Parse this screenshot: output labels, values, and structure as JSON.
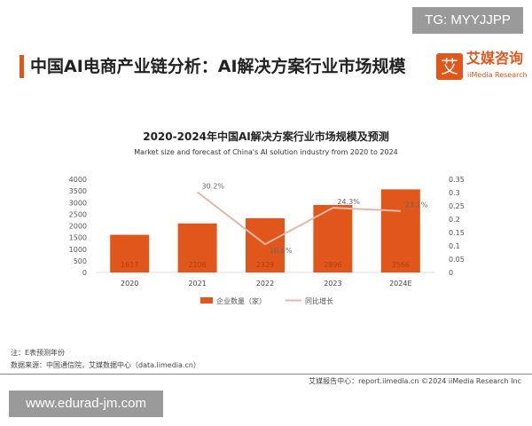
{
  "watermark_top": "TG: MYYJJPP",
  "header": {
    "title": "中国AI电商产业链分析：AI解决方案行业市场规模",
    "logo_glyph": "艾",
    "logo_cn": "艾媒咨询",
    "logo_en": "iiMedia Research",
    "accent": "#e0561b"
  },
  "chart_data": {
    "type": "bar+line",
    "title": "2020-2024年中国AI解决方案行业市场规模及预测",
    "subtitle": "Market size and forecast of China's AI solution industry from 2020 to 2024",
    "categories": [
      "2020",
      "2021",
      "2022",
      "2023",
      "2024E"
    ],
    "series": [
      {
        "name": "企业数量（家）",
        "type": "bar",
        "axis": "left",
        "values": [
          1617,
          2106,
          2329,
          2896,
          3566
        ],
        "color": "#e0561b"
      },
      {
        "name": "同比增长",
        "type": "line",
        "axis": "right",
        "values": [
          null,
          0.302,
          0.106,
          0.243,
          0.231
        ],
        "labels": [
          "",
          "30.2%",
          "10.6%",
          "24.3%",
          "23.1%"
        ],
        "color": "#e6b8a8"
      }
    ],
    "y_left": {
      "range": [
        0,
        4000
      ],
      "ticks": [
        "0",
        "500",
        "1000",
        "1500",
        "2000",
        "2500",
        "3000",
        "3500",
        "4000"
      ]
    },
    "y_right": {
      "range": [
        0,
        0.35
      ],
      "ticks": [
        "0",
        "0.05",
        "0.1",
        "0.15",
        "0.2",
        "0.25",
        "0.3",
        "0.35"
      ]
    },
    "grid": false,
    "legend": "bottom"
  },
  "notes": {
    "note": "注：E表预测年份",
    "source": "数据来源：中国通信院，艾媒数据中心（data.iimedia.cn）"
  },
  "footer": {
    "text": "艾媒报告中心：report.iimedia.cn    ©2024  iiMedia Research  Inc"
  },
  "watermark_bottom": "www.edurad-jm.com"
}
